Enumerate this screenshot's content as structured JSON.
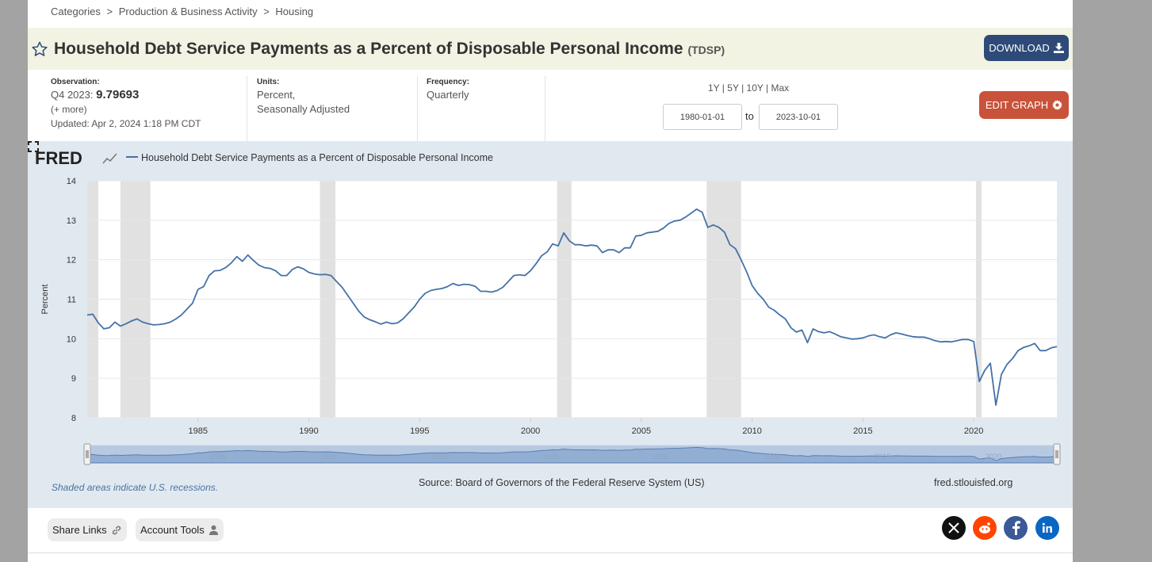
{
  "breadcrumb": [
    "Categories",
    ">",
    "Production & Business Activity",
    ">",
    "Housing"
  ],
  "header": {
    "title": "Household Debt Service Payments as a Percent of Disposable Personal Income",
    "series_id": "(TDSP)",
    "download_label": "DOWNLOAD"
  },
  "observation": {
    "label": "Observation:",
    "period": "Q4 2023:",
    "value": "9.79693",
    "more": "(+ more)",
    "updated": "Updated: Apr 2, 2024 1:18 PM CDT"
  },
  "units": {
    "label": "Units:",
    "line1": "Percent,",
    "line2": "Seasonally Adjusted"
  },
  "frequency": {
    "label": "Frequency:",
    "value": "Quarterly"
  },
  "range": {
    "links": [
      "1Y",
      "5Y",
      "10Y",
      "Max"
    ],
    "start": "1980-01-01",
    "to": "to",
    "end": "2023-10-01"
  },
  "edit_label": "EDIT GRAPH",
  "colors": {
    "line": "#4572a7",
    "recession": "#e1e1e1",
    "title_bg": "#f2f3e3",
    "download": "#2d4a78",
    "edit": "#c9523a"
  },
  "chart_data": {
    "type": "line",
    "logo": "FRED",
    "legend": "Household Debt Service Payments as a Percent of Disposable Personal Income",
    "ylabel": "Percent",
    "ylim": [
      8,
      14
    ],
    "yticks": [
      "8",
      "9",
      "10",
      "11",
      "12",
      "13",
      "14"
    ],
    "xlim": [
      1980.0,
      2023.75
    ],
    "xticks": [
      "1985",
      "1990",
      "1995",
      "2000",
      "2005",
      "2010",
      "2015",
      "2020"
    ],
    "recessions": [
      [
        1980.0,
        1980.5
      ],
      [
        1981.5,
        1982.85
      ],
      [
        1990.5,
        1991.2
      ],
      [
        2001.2,
        2001.85
      ],
      [
        2007.95,
        2009.5
      ],
      [
        2020.1,
        2020.35
      ]
    ],
    "series": [
      {
        "name": "TDSP",
        "points": [
          [
            1980.0,
            10.6
          ],
          [
            1980.25,
            10.62
          ],
          [
            1980.5,
            10.4
          ],
          [
            1980.75,
            10.25
          ],
          [
            1981.0,
            10.28
          ],
          [
            1981.25,
            10.42
          ],
          [
            1981.5,
            10.32
          ],
          [
            1981.75,
            10.38
          ],
          [
            1982.0,
            10.45
          ],
          [
            1982.25,
            10.5
          ],
          [
            1982.5,
            10.42
          ],
          [
            1982.75,
            10.38
          ],
          [
            1983.0,
            10.35
          ],
          [
            1983.25,
            10.36
          ],
          [
            1983.5,
            10.38
          ],
          [
            1983.75,
            10.42
          ],
          [
            1984.0,
            10.5
          ],
          [
            1984.25,
            10.6
          ],
          [
            1984.5,
            10.75
          ],
          [
            1984.75,
            10.9
          ],
          [
            1985.0,
            11.25
          ],
          [
            1985.25,
            11.32
          ],
          [
            1985.5,
            11.6
          ],
          [
            1985.75,
            11.72
          ],
          [
            1986.0,
            11.73
          ],
          [
            1986.25,
            11.8
          ],
          [
            1986.5,
            11.92
          ],
          [
            1986.75,
            12.08
          ],
          [
            1987.0,
            11.96
          ],
          [
            1987.25,
            12.12
          ],
          [
            1987.5,
            11.98
          ],
          [
            1987.75,
            11.86
          ],
          [
            1988.0,
            11.8
          ],
          [
            1988.25,
            11.78
          ],
          [
            1988.5,
            11.72
          ],
          [
            1988.75,
            11.6
          ],
          [
            1989.0,
            11.6
          ],
          [
            1989.25,
            11.75
          ],
          [
            1989.5,
            11.82
          ],
          [
            1989.75,
            11.77
          ],
          [
            1990.0,
            11.68
          ],
          [
            1990.25,
            11.64
          ],
          [
            1990.5,
            11.62
          ],
          [
            1990.75,
            11.63
          ],
          [
            1991.0,
            11.6
          ],
          [
            1991.25,
            11.45
          ],
          [
            1991.5,
            11.3
          ],
          [
            1991.75,
            11.1
          ],
          [
            1992.0,
            10.9
          ],
          [
            1992.25,
            10.7
          ],
          [
            1992.5,
            10.55
          ],
          [
            1992.75,
            10.48
          ],
          [
            1993.0,
            10.43
          ],
          [
            1993.25,
            10.37
          ],
          [
            1993.5,
            10.42
          ],
          [
            1993.75,
            10.38
          ],
          [
            1994.0,
            10.4
          ],
          [
            1994.25,
            10.5
          ],
          [
            1994.5,
            10.65
          ],
          [
            1994.75,
            10.8
          ],
          [
            1995.0,
            11.0
          ],
          [
            1995.25,
            11.15
          ],
          [
            1995.5,
            11.22
          ],
          [
            1995.75,
            11.25
          ],
          [
            1996.0,
            11.27
          ],
          [
            1996.25,
            11.32
          ],
          [
            1996.5,
            11.4
          ],
          [
            1996.75,
            11.35
          ],
          [
            1997.0,
            11.38
          ],
          [
            1997.25,
            11.37
          ],
          [
            1997.5,
            11.33
          ],
          [
            1997.75,
            11.2
          ],
          [
            1998.0,
            11.2
          ],
          [
            1998.25,
            11.18
          ],
          [
            1998.5,
            11.22
          ],
          [
            1998.75,
            11.3
          ],
          [
            1999.0,
            11.45
          ],
          [
            1999.25,
            11.6
          ],
          [
            1999.5,
            11.62
          ],
          [
            1999.75,
            11.6
          ],
          [
            2000.0,
            11.72
          ],
          [
            2000.25,
            11.9
          ],
          [
            2000.5,
            12.1
          ],
          [
            2000.75,
            12.2
          ],
          [
            2001.0,
            12.4
          ],
          [
            2001.25,
            12.35
          ],
          [
            2001.5,
            12.68
          ],
          [
            2001.75,
            12.48
          ],
          [
            2002.0,
            12.38
          ],
          [
            2002.25,
            12.38
          ],
          [
            2002.5,
            12.35
          ],
          [
            2002.75,
            12.37
          ],
          [
            2003.0,
            12.35
          ],
          [
            2003.25,
            12.18
          ],
          [
            2003.5,
            12.25
          ],
          [
            2003.75,
            12.25
          ],
          [
            2004.0,
            12.18
          ],
          [
            2004.25,
            12.3
          ],
          [
            2004.5,
            12.3
          ],
          [
            2004.75,
            12.6
          ],
          [
            2005.0,
            12.62
          ],
          [
            2005.25,
            12.68
          ],
          [
            2005.5,
            12.7
          ],
          [
            2005.75,
            12.72
          ],
          [
            2006.0,
            12.8
          ],
          [
            2006.25,
            12.92
          ],
          [
            2006.5,
            12.98
          ],
          [
            2006.75,
            13.0
          ],
          [
            2007.0,
            13.08
          ],
          [
            2007.25,
            13.18
          ],
          [
            2007.5,
            13.28
          ],
          [
            2007.75,
            13.2
          ],
          [
            2008.0,
            12.82
          ],
          [
            2008.25,
            12.88
          ],
          [
            2008.5,
            12.82
          ],
          [
            2008.75,
            12.7
          ],
          [
            2009.0,
            12.38
          ],
          [
            2009.25,
            12.28
          ],
          [
            2009.5,
            12.0
          ],
          [
            2009.75,
            11.7
          ],
          [
            2010.0,
            11.35
          ],
          [
            2010.25,
            11.15
          ],
          [
            2010.5,
            11.0
          ],
          [
            2010.75,
            10.8
          ],
          [
            2011.0,
            10.72
          ],
          [
            2011.25,
            10.6
          ],
          [
            2011.5,
            10.5
          ],
          [
            2011.75,
            10.28
          ],
          [
            2012.0,
            10.17
          ],
          [
            2012.25,
            10.22
          ],
          [
            2012.5,
            9.9
          ],
          [
            2012.75,
            10.25
          ],
          [
            2013.0,
            10.18
          ],
          [
            2013.25,
            10.15
          ],
          [
            2013.5,
            10.18
          ],
          [
            2013.75,
            10.12
          ],
          [
            2014.0,
            10.05
          ],
          [
            2014.25,
            10.02
          ],
          [
            2014.5,
            9.99
          ],
          [
            2014.75,
            10.0
          ],
          [
            2015.0,
            10.02
          ],
          [
            2015.25,
            10.07
          ],
          [
            2015.5,
            10.1
          ],
          [
            2015.75,
            10.05
          ],
          [
            2016.0,
            10.02
          ],
          [
            2016.25,
            10.1
          ],
          [
            2016.5,
            10.15
          ],
          [
            2016.75,
            10.12
          ],
          [
            2017.0,
            10.08
          ],
          [
            2017.25,
            10.05
          ],
          [
            2017.5,
            10.04
          ],
          [
            2017.75,
            10.04
          ],
          [
            2018.0,
            10.0
          ],
          [
            2018.25,
            9.95
          ],
          [
            2018.5,
            9.92
          ],
          [
            2018.75,
            9.93
          ],
          [
            2019.0,
            9.92
          ],
          [
            2019.25,
            9.95
          ],
          [
            2019.5,
            9.98
          ],
          [
            2019.75,
            9.98
          ],
          [
            2020.0,
            9.93
          ],
          [
            2020.25,
            8.92
          ],
          [
            2020.5,
            9.2
          ],
          [
            2020.75,
            9.38
          ],
          [
            2021.0,
            8.32
          ],
          [
            2021.25,
            9.1
          ],
          [
            2021.5,
            9.35
          ],
          [
            2021.75,
            9.5
          ],
          [
            2022.0,
            9.7
          ],
          [
            2022.25,
            9.78
          ],
          [
            2022.5,
            9.82
          ],
          [
            2022.75,
            9.88
          ],
          [
            2023.0,
            9.7
          ],
          [
            2023.25,
            9.7
          ],
          [
            2023.5,
            9.77
          ],
          [
            2023.75,
            9.8
          ]
        ]
      }
    ]
  },
  "navigator_labels": [
    "1985",
    "1990",
    "1995",
    "2000",
    "2005",
    "2010",
    "2015",
    "2020"
  ],
  "footer": {
    "footnote": "Shaded areas indicate U.S. recessions.",
    "source": "Source: Board of Governors of the Federal Reserve System (US)",
    "site": "fred.stlouisfed.org"
  },
  "bottom": {
    "share_label": "Share Links",
    "account_label": "Account Tools",
    "social": [
      "x-icon",
      "reddit-icon",
      "facebook-icon",
      "linkedin-icon"
    ]
  }
}
